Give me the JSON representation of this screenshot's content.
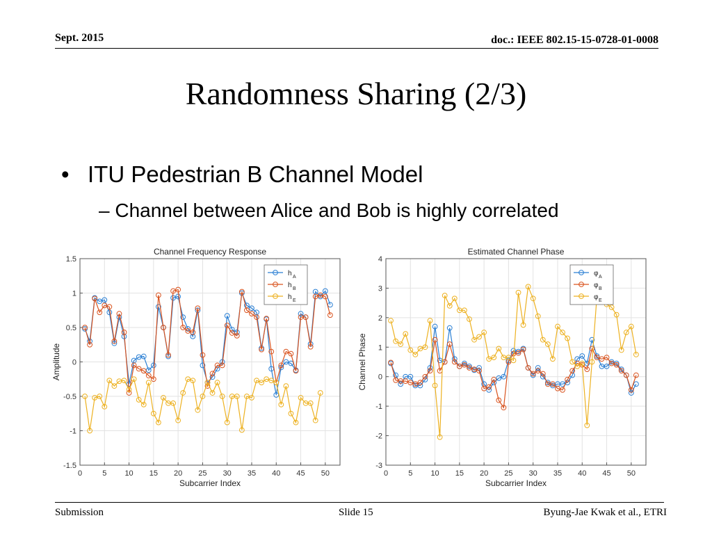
{
  "header": {
    "date": "Sept. 2015",
    "doc": "doc.: IEEE 802.15-15-0728-01-0008"
  },
  "title": "Randomness Sharing (2/3)",
  "bullets": {
    "level1": "ITU Pedestrian B Channel Model",
    "level2": "Channel between Alice and Bob is highly correlated"
  },
  "footer": {
    "left": "Submission",
    "center": "Slide 15",
    "right": "Byung-Jae Kwak et al., ETRI"
  },
  "chart_data": [
    {
      "type": "line",
      "title": "Channel Frequency Response",
      "xlabel": "Subcarrier Index",
      "ylabel": "Amplitude",
      "xlim": [
        0,
        53
      ],
      "ylim": [
        -1.5,
        1.5
      ],
      "xticks": [
        0,
        5,
        10,
        15,
        20,
        25,
        30,
        35,
        40,
        45,
        50
      ],
      "yticks": [
        -1.5,
        -1,
        -0.5,
        0,
        0.5,
        1,
        1.5
      ],
      "grid": true,
      "legend": "top-right",
      "x": [
        1,
        2,
        3,
        4,
        5,
        6,
        7,
        8,
        9,
        10,
        11,
        12,
        13,
        14,
        15,
        16,
        17,
        18,
        19,
        20,
        21,
        22,
        23,
        24,
        25,
        26,
        27,
        28,
        29,
        30,
        31,
        32,
        33,
        34,
        35,
        36,
        37,
        38,
        39,
        40,
        41,
        42,
        43,
        44,
        45,
        46,
        47,
        48,
        49,
        50,
        51,
        52
      ],
      "series": [
        {
          "name": "h",
          "sub": "A",
          "color": "#2a7fd4",
          "values": [
            0.48,
            0.3,
            0.93,
            0.88,
            0.9,
            0.72,
            0.27,
            0.65,
            0.37,
            -0.32,
            0.02,
            0.07,
            0.08,
            -0.12,
            -0.05,
            0.8,
            0.5,
            0.08,
            0.93,
            0.95,
            0.65,
            0.48,
            0.37,
            0.75,
            -0.05,
            -0.3,
            -0.22,
            -0.1,
            0.0,
            0.67,
            0.47,
            0.43,
            1.0,
            0.82,
            0.78,
            0.72,
            0.2,
            0.62,
            -0.1,
            -0.48,
            -0.08,
            0.0,
            -0.02,
            -0.12,
            0.7,
            0.65,
            0.26,
            1.02,
            0.95,
            1.03,
            0.83,
            null
          ]
        },
        {
          "name": "h",
          "sub": "B",
          "color": "#d9531e",
          "values": [
            0.5,
            0.25,
            0.92,
            0.72,
            0.82,
            0.8,
            0.3,
            0.7,
            0.43,
            -0.45,
            -0.05,
            -0.1,
            -0.13,
            -0.2,
            -0.25,
            0.97,
            0.5,
            0.1,
            1.03,
            1.05,
            0.5,
            0.45,
            0.43,
            0.78,
            0.1,
            -0.35,
            -0.17,
            -0.05,
            -0.05,
            0.53,
            0.42,
            0.38,
            1.02,
            0.75,
            0.7,
            0.65,
            0.18,
            0.63,
            0.15,
            -0.3,
            -0.05,
            0.15,
            0.12,
            -0.13,
            0.65,
            0.65,
            0.22,
            0.95,
            0.97,
            0.95,
            0.68,
            null
          ]
        },
        {
          "name": "h",
          "sub": "E",
          "color": "#edb120",
          "values": [
            -0.5,
            -1.0,
            -0.52,
            -0.5,
            -0.65,
            -0.27,
            -0.35,
            -0.28,
            -0.27,
            -0.4,
            -0.25,
            -0.55,
            -0.62,
            -0.3,
            -0.75,
            -0.88,
            -0.52,
            -0.6,
            -0.6,
            -0.85,
            -0.45,
            -0.25,
            -0.27,
            -0.7,
            -0.5,
            -0.3,
            -0.45,
            -0.3,
            -0.5,
            -0.88,
            -0.5,
            -0.5,
            -0.99,
            -0.5,
            -0.52,
            -0.27,
            -0.3,
            -0.25,
            -0.27,
            -0.3,
            -0.62,
            -0.35,
            -0.75,
            -0.88,
            -0.52,
            -0.6,
            -0.6,
            -0.85,
            -0.45,
            null,
            null,
            null
          ]
        }
      ]
    },
    {
      "type": "line",
      "title": "Estimated Channel Phase",
      "xlabel": "Subcarrier Index",
      "ylabel": "Channel Phase",
      "xlim": [
        0,
        53
      ],
      "ylim": [
        -3,
        4
      ],
      "xticks": [
        0,
        5,
        10,
        15,
        20,
        25,
        30,
        35,
        40,
        45,
        50
      ],
      "yticks": [
        -3,
        -2,
        -1,
        0,
        1,
        2,
        3,
        4
      ],
      "grid": true,
      "legend": "top-right",
      "x": [
        1,
        2,
        3,
        4,
        5,
        6,
        7,
        8,
        9,
        10,
        11,
        12,
        13,
        14,
        15,
        16,
        17,
        18,
        19,
        20,
        21,
        22,
        23,
        24,
        25,
        26,
        27,
        28,
        29,
        30,
        31,
        32,
        33,
        34,
        35,
        36,
        37,
        38,
        39,
        40,
        41,
        42,
        43,
        44,
        45,
        46,
        47,
        48,
        49,
        50,
        51,
        52
      ],
      "series": [
        {
          "name": "φ",
          "sub": "A",
          "color": "#2a7fd4",
          "values": [
            0.45,
            0.05,
            -0.25,
            0.0,
            0.0,
            -0.3,
            -0.3,
            -0.1,
            0.3,
            1.7,
            0.55,
            0.5,
            1.65,
            0.6,
            0.35,
            0.45,
            0.35,
            0.22,
            0.3,
            -0.25,
            -0.45,
            -0.2,
            -0.05,
            0.0,
            0.55,
            0.88,
            0.85,
            0.95,
            0.3,
            0.05,
            0.3,
            0.0,
            -0.2,
            -0.3,
            -0.25,
            -0.25,
            -0.2,
            0.05,
            0.6,
            0.7,
            0.45,
            1.25,
            0.7,
            0.35,
            0.35,
            0.5,
            0.45,
            0.25,
            0.05,
            -0.55,
            -0.25,
            null
          ]
        },
        {
          "name": "φ",
          "sub": "B",
          "color": "#d9531e",
          "values": [
            0.48,
            -0.12,
            -0.15,
            -0.15,
            -0.2,
            -0.25,
            -0.2,
            0.0,
            0.2,
            1.25,
            0.2,
            0.5,
            1.1,
            0.5,
            0.35,
            0.4,
            0.3,
            0.25,
            0.2,
            -0.4,
            -0.35,
            -0.1,
            -0.8,
            -1.05,
            0.5,
            0.78,
            0.8,
            0.92,
            0.3,
            0.1,
            0.2,
            0.1,
            -0.25,
            -0.25,
            -0.4,
            -0.45,
            -0.1,
            0.2,
            0.45,
            0.4,
            0.25,
            0.95,
            0.65,
            0.6,
            0.65,
            0.45,
            0.4,
            0.2,
            0.05,
            -0.45,
            0.05,
            null
          ]
        },
        {
          "name": "φ",
          "sub": "E",
          "color": "#edb120",
          "values": [
            1.9,
            1.2,
            1.1,
            1.45,
            0.9,
            0.75,
            0.95,
            1.0,
            1.9,
            -0.3,
            -2.05,
            2.75,
            2.4,
            2.65,
            2.25,
            2.25,
            1.95,
            1.25,
            1.35,
            1.5,
            0.6,
            0.65,
            0.95,
            0.65,
            0.65,
            0.55,
            2.85,
            1.75,
            3.05,
            2.65,
            2.05,
            1.25,
            1.1,
            0.6,
            1.7,
            1.5,
            1.3,
            0.5,
            0.35,
            0.45,
            -1.65,
            0.5,
            2.7,
            2.85,
            2.45,
            2.35,
            2.1,
            0.9,
            1.5,
            1.7,
            0.75,
            null
          ]
        }
      ]
    }
  ]
}
